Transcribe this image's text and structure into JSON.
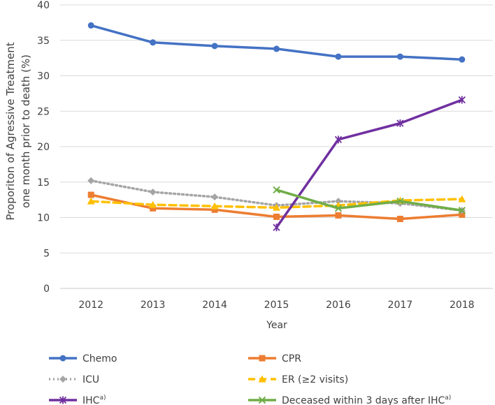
{
  "chart_data": {
    "type": "line",
    "title": "",
    "xlabel": "Year",
    "ylabel": "Proporiton of Agressive Treatment one month prior to death (%)",
    "ylabel_lines": [
      "Proporiton of Agressive Treatment",
      "one month prior to death (%)"
    ],
    "categories": [
      "2012",
      "2013",
      "2014",
      "2015",
      "2016",
      "2017",
      "2018"
    ],
    "ylim": [
      0,
      40
    ],
    "yticks": [
      0,
      5,
      10,
      15,
      20,
      25,
      30,
      35,
      40
    ],
    "grid": true,
    "legend_position": "bottom",
    "series": [
      {
        "name": "Chemo",
        "values": [
          37.1,
          34.7,
          34.2,
          33.8,
          32.7,
          32.7,
          32.3
        ],
        "color": "#4472C4",
        "dash": "solid",
        "marker": "circle",
        "sup": ""
      },
      {
        "name": "CPR",
        "values": [
          13.2,
          11.3,
          11.1,
          10.1,
          10.3,
          9.8,
          10.4
        ],
        "color": "#ED7D31",
        "dash": "solid",
        "marker": "square",
        "sup": ""
      },
      {
        "name": "ICU",
        "values": [
          15.2,
          13.6,
          12.9,
          11.7,
          12.3,
          12.0,
          11.0
        ],
        "color": "#A5A5A5",
        "dash": "dot",
        "marker": "diamond",
        "sup": ""
      },
      {
        "name": "ER (≥2 visits)",
        "values": [
          12.3,
          11.8,
          11.6,
          11.4,
          11.7,
          12.4,
          12.6
        ],
        "color": "#FFC000",
        "dash": "dash",
        "marker": "triangle",
        "sup": ""
      },
      {
        "name": "IHC",
        "values": [
          null,
          null,
          null,
          8.6,
          21.0,
          23.3,
          26.6
        ],
        "color": "#7030A0",
        "dash": "solid",
        "marker": "star",
        "sup": "a)"
      },
      {
        "name": "Deceased within 3 days after IHC",
        "values": [
          null,
          null,
          null,
          13.9,
          11.3,
          12.3,
          11.0
        ],
        "color": "#70AD47",
        "dash": "solid",
        "marker": "x",
        "sup": "a)"
      }
    ]
  }
}
